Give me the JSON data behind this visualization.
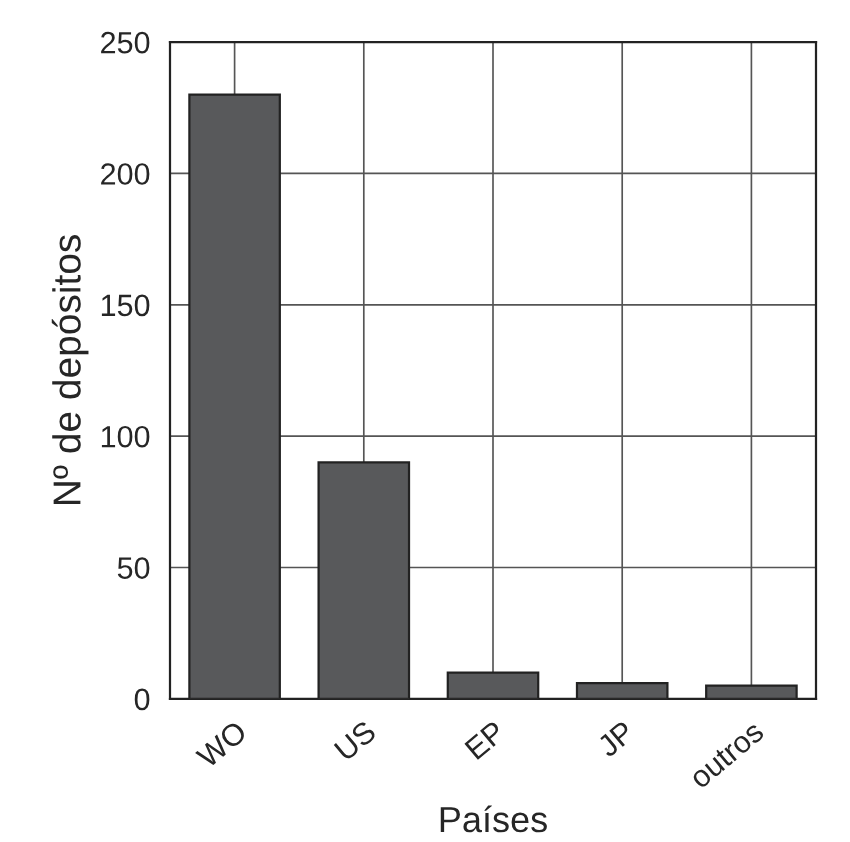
{
  "chart_data": {
    "type": "bar",
    "xlabel": "Países",
    "ylabel": "Nº de depósitos",
    "categories": [
      "WO",
      "US",
      "EP",
      "JP",
      "outros"
    ],
    "values": [
      230,
      90,
      10,
      6,
      5
    ],
    "color": "#58595b",
    "ylim": [
      0,
      250
    ],
    "yticks": [
      0,
      50,
      100,
      150,
      200,
      250
    ],
    "grid": true
  }
}
